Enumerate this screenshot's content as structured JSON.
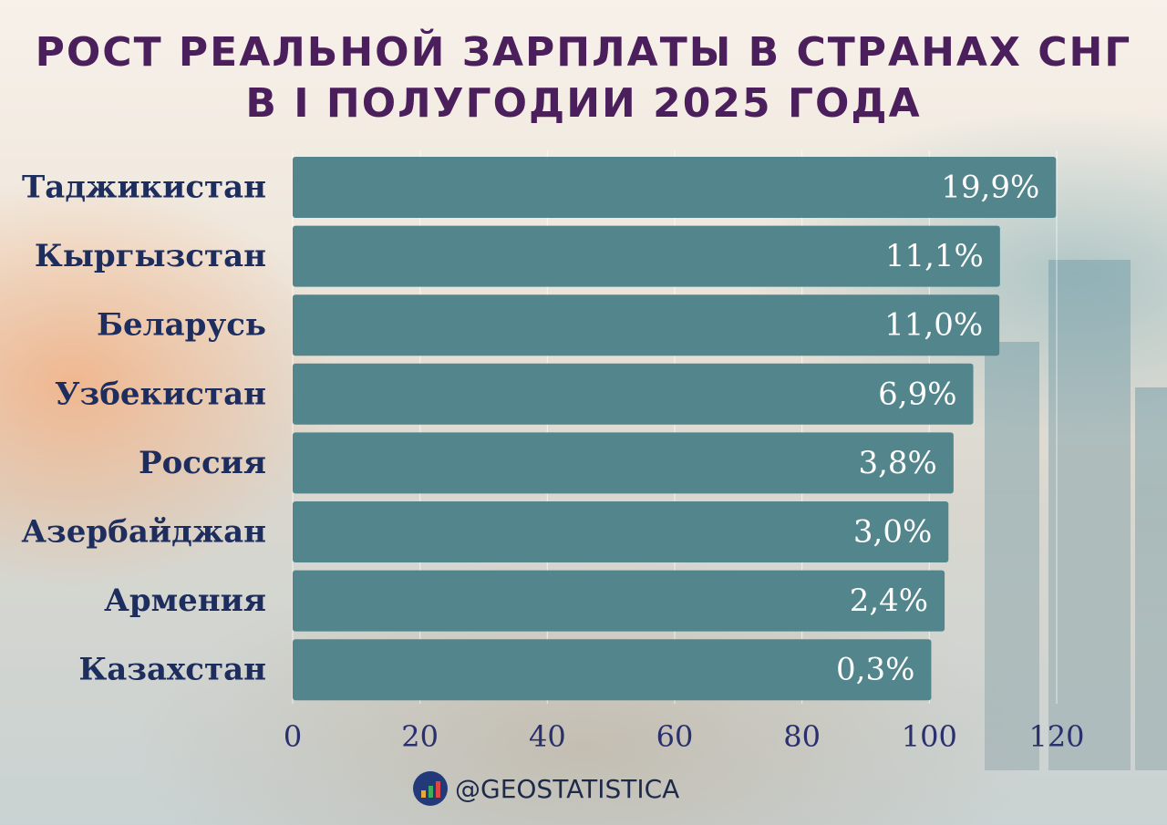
{
  "title_lines": [
    "РОСТ РЕАЛЬНОЙ ЗАРПЛАТЫ В СТРАНАХ СНГ",
    "В I ПОЛУГОДИИ 2025 ГОДА"
  ],
  "footer_handle": "@GEOSTATISTICA",
  "colors": {
    "bar": "#52868c",
    "title": "#4b1f5c",
    "category_label": "#1d2d5e",
    "value_label": "#ffffff",
    "tick_label": "#2a2f6e"
  },
  "chart_data": {
    "type": "bar",
    "orientation": "horizontal",
    "title": "РОСТ РЕАЛЬНОЙ ЗАРПЛАТЫ В СТРАНАХ СНГ В I ПОЛУГОДИИ 2025 ГОДА",
    "categories": [
      "Таджикистан",
      "Кыргызстан",
      "Беларусь",
      "Узбекистан",
      "Россия",
      "Азербайджан",
      "Армения",
      "Казахстан"
    ],
    "values": [
      119.9,
      111.1,
      111.0,
      106.9,
      103.8,
      103.0,
      102.4,
      100.3
    ],
    "data_labels": [
      "19,9%",
      "11,1%",
      "11,0%",
      "6,9%",
      "3,8%",
      "3,0%",
      "2,4%",
      "0,3%"
    ],
    "xlim": [
      0,
      120
    ],
    "xticks": [
      0,
      20,
      40,
      60,
      80,
      100,
      120
    ],
    "xlabel": "",
    "ylabel": "",
    "grid": true,
    "legend": "none"
  }
}
